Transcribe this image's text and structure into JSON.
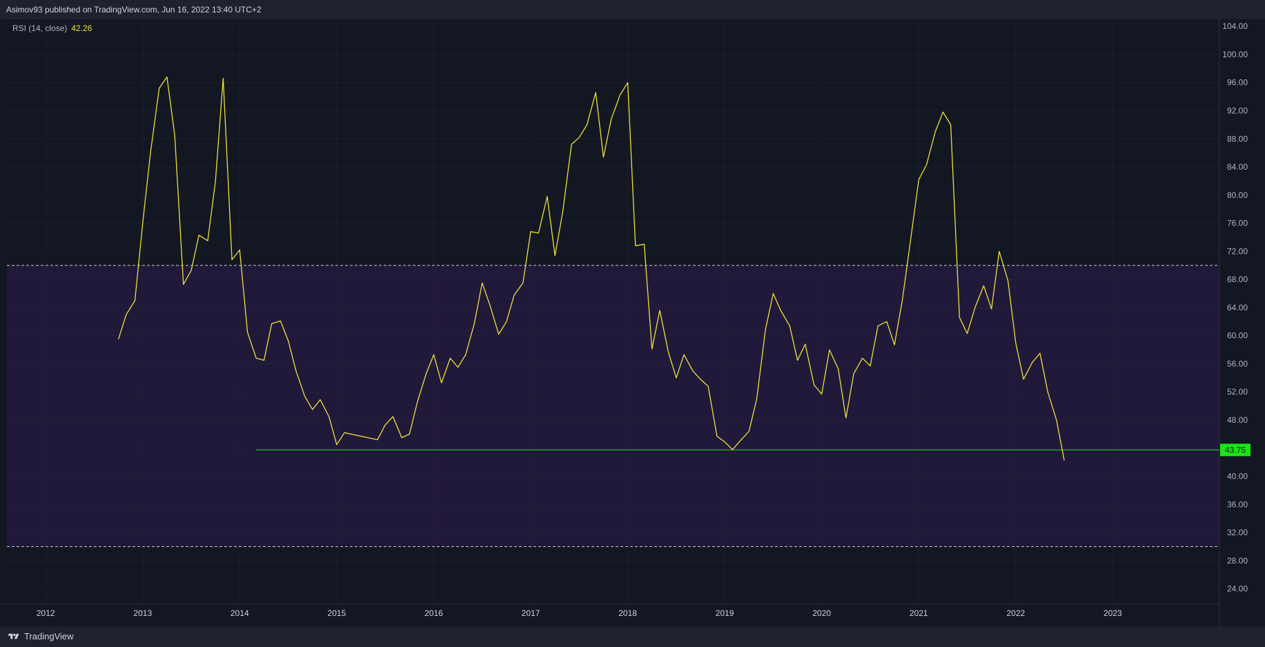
{
  "header": {
    "published_text": "Asimov93 published on TradingView.com, Jun 16, 2022 13:40 UTC+2"
  },
  "legend": {
    "indicator_label": "RSI (14, close)",
    "current_value": "42.26"
  },
  "footer": {
    "brand": "TradingView"
  },
  "colors": {
    "background": "#131722",
    "band_fill": "#21193a",
    "rsi_line": "#f0e13c",
    "support_line": "#26e020",
    "support_badge": "#19e614",
    "axis_text": "#b2b5be",
    "grid": "#232735"
  },
  "chart_data": {
    "type": "line",
    "title": "",
    "xlabel": "",
    "ylabel": "",
    "ylim": [
      22,
      105
    ],
    "xlim": [
      2011.6,
      2024.1
    ],
    "y_ticks": [
      "24.00",
      "28.00",
      "32.00",
      "36.00",
      "40.00",
      "44.00",
      "48.00",
      "52.00",
      "56.00",
      "60.00",
      "64.00",
      "68.00",
      "72.00",
      "76.00",
      "80.00",
      "84.00",
      "88.00",
      "92.00",
      "96.00",
      "100.00",
      "104.00"
    ],
    "x_ticks": [
      "2012",
      "2013",
      "2014",
      "2015",
      "2016",
      "2017",
      "2018",
      "2019",
      "2020",
      "2021",
      "2022",
      "2023"
    ],
    "band": {
      "upper": 70,
      "lower": 30
    },
    "horizontal_line": {
      "y": 43.75,
      "x_start": 2014.17,
      "label": "43.75"
    },
    "grid": true,
    "series": [
      {
        "points": [
          [
            2012.75,
            59.5
          ],
          [
            2012.83,
            63
          ],
          [
            2012.92,
            65
          ],
          [
            2013.0,
            76
          ],
          [
            2013.08,
            86
          ],
          [
            2013.17,
            95.2
          ],
          [
            2013.25,
            96.8
          ],
          [
            2013.33,
            88.5
          ],
          [
            2013.42,
            67.3
          ],
          [
            2013.5,
            69.3
          ],
          [
            2013.58,
            74.3
          ],
          [
            2013.67,
            73.5
          ],
          [
            2013.75,
            82
          ],
          [
            2013.83,
            96.6
          ],
          [
            2013.92,
            70.8
          ],
          [
            2014.0,
            72.2
          ],
          [
            2014.08,
            60.5
          ],
          [
            2014.17,
            56.8
          ],
          [
            2014.25,
            56.5
          ],
          [
            2014.33,
            61.7
          ],
          [
            2014.42,
            62.1
          ],
          [
            2014.5,
            59.3
          ],
          [
            2014.58,
            55
          ],
          [
            2014.67,
            51.4
          ],
          [
            2014.75,
            49.5
          ],
          [
            2014.83,
            50.9
          ],
          [
            2014.92,
            48.5
          ],
          [
            2015.0,
            44.5
          ],
          [
            2015.08,
            46.2
          ],
          [
            2015.42,
            45.2
          ],
          [
            2015.5,
            47.3
          ],
          [
            2015.58,
            48.5
          ],
          [
            2015.67,
            45.5
          ],
          [
            2015.75,
            46
          ],
          [
            2015.83,
            50.5
          ],
          [
            2015.92,
            54.5
          ],
          [
            2016.0,
            57.3
          ],
          [
            2016.08,
            53.3
          ],
          [
            2016.17,
            56.8
          ],
          [
            2016.25,
            55.5
          ],
          [
            2016.33,
            57.3
          ],
          [
            2016.42,
            61.8
          ],
          [
            2016.5,
            67.5
          ],
          [
            2016.58,
            64.3
          ],
          [
            2016.67,
            60.2
          ],
          [
            2016.75,
            62
          ],
          [
            2016.83,
            65.8
          ],
          [
            2016.92,
            67.5
          ],
          [
            2017.0,
            74.8
          ],
          [
            2017.08,
            74.6
          ],
          [
            2017.17,
            79.8
          ],
          [
            2017.25,
            71.4
          ],
          [
            2017.33,
            77.6
          ],
          [
            2017.42,
            87.2
          ],
          [
            2017.5,
            88.2
          ],
          [
            2017.58,
            90
          ],
          [
            2017.67,
            94.6
          ],
          [
            2017.75,
            85.4
          ],
          [
            2017.83,
            90.8
          ],
          [
            2017.92,
            94.2
          ],
          [
            2018.0,
            96
          ],
          [
            2018.08,
            72.8
          ],
          [
            2018.17,
            73
          ],
          [
            2018.25,
            58.1
          ],
          [
            2018.33,
            63.6
          ],
          [
            2018.42,
            57.6
          ],
          [
            2018.5,
            54
          ],
          [
            2018.58,
            57.3
          ],
          [
            2018.67,
            55
          ],
          [
            2018.75,
            53.8
          ],
          [
            2018.83,
            52.8
          ],
          [
            2018.92,
            45.7
          ],
          [
            2019.0,
            44.9
          ],
          [
            2019.08,
            43.8
          ],
          [
            2019.17,
            45.2
          ],
          [
            2019.25,
            46.4
          ],
          [
            2019.33,
            51
          ],
          [
            2019.42,
            60.9
          ],
          [
            2019.5,
            66
          ],
          [
            2019.58,
            63.5
          ],
          [
            2019.67,
            61.4
          ],
          [
            2019.75,
            56.5
          ],
          [
            2019.83,
            58.8
          ],
          [
            2019.92,
            53
          ],
          [
            2020.0,
            51.7
          ],
          [
            2020.08,
            58
          ],
          [
            2020.17,
            55.3
          ],
          [
            2020.25,
            48.3
          ],
          [
            2020.33,
            54.6
          ],
          [
            2020.42,
            56.8
          ],
          [
            2020.5,
            55.7
          ],
          [
            2020.58,
            61.4
          ],
          [
            2020.67,
            62
          ],
          [
            2020.75,
            58.7
          ],
          [
            2020.83,
            65
          ],
          [
            2020.92,
            74
          ],
          [
            2021.0,
            82.2
          ],
          [
            2021.08,
            84.3
          ],
          [
            2021.17,
            89
          ],
          [
            2021.25,
            91.8
          ],
          [
            2021.33,
            90
          ],
          [
            2021.42,
            62.6
          ],
          [
            2021.5,
            60.3
          ],
          [
            2021.58,
            64
          ],
          [
            2021.67,
            67.1
          ],
          [
            2021.75,
            63.8
          ],
          [
            2021.83,
            72
          ],
          [
            2021.92,
            67.8
          ],
          [
            2022.0,
            59
          ],
          [
            2022.08,
            53.8
          ],
          [
            2022.17,
            56.2
          ],
          [
            2022.25,
            57.5
          ],
          [
            2022.33,
            52
          ],
          [
            2022.42,
            48
          ],
          [
            2022.5,
            42.26
          ]
        ]
      }
    ]
  }
}
